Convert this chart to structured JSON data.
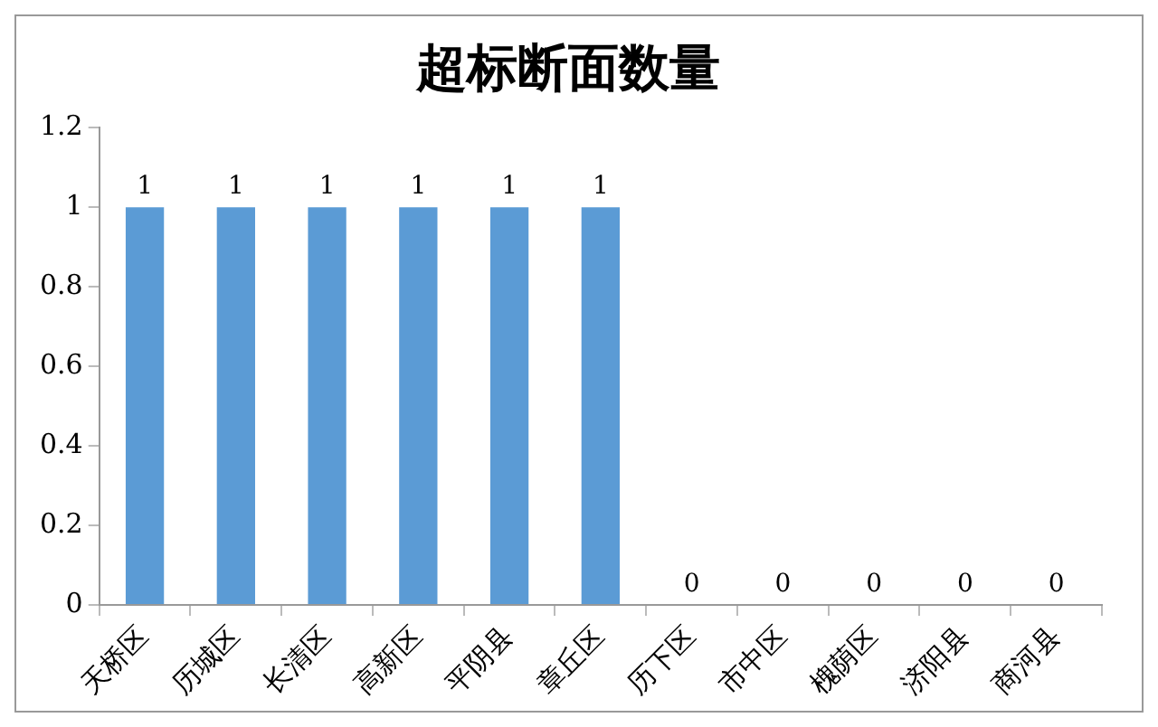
{
  "chart_data": {
    "type": "bar",
    "title": "超标断面数量",
    "categories": [
      "天桥区",
      "历城区",
      "长清区",
      "高新区",
      "平阴县",
      "章丘区",
      "历下区",
      "市中区",
      "槐荫区",
      "济阳县",
      "商河县"
    ],
    "values": [
      1,
      1,
      1,
      1,
      1,
      1,
      0,
      0,
      0,
      0,
      0
    ],
    "color": "#5b9bd5",
    "ylim": [
      0,
      1.2
    ],
    "yticks": [
      0,
      0.2,
      0.4,
      0.6,
      0.8,
      1,
      1.2
    ],
    "grid": false,
    "data_labels": true
  }
}
